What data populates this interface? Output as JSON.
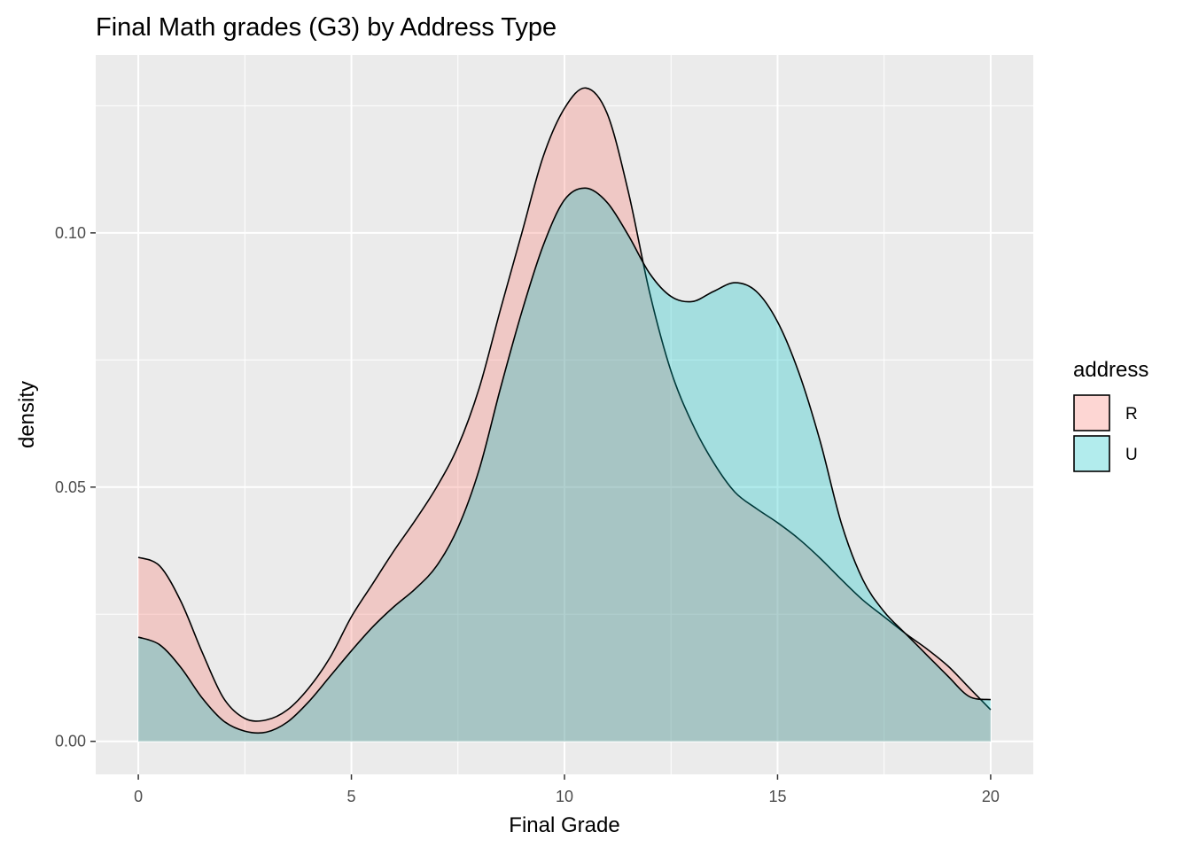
{
  "chart_data": {
    "type": "area",
    "subtype": "density",
    "title": "Final Math grades (G3) by Address Type",
    "xlabel": "Final Grade",
    "ylabel": "density",
    "xlim": [
      -1,
      21
    ],
    "ylim": [
      -0.0065,
      0.135
    ],
    "x_ticks": [
      0,
      5,
      10,
      15,
      20
    ],
    "x_tick_labels": [
      "0",
      "5",
      "10",
      "15",
      "20"
    ],
    "y_ticks": [
      0,
      0.05,
      0.1
    ],
    "y_tick_labels": [
      "0.00",
      "0.05",
      "0.10"
    ],
    "x_minor_ticks": [
      2.5,
      7.5,
      12.5,
      17.5
    ],
    "y_minor_ticks": [
      0.025,
      0.075,
      0.125
    ],
    "grid": true,
    "legend": {
      "title": "address",
      "position": "right"
    },
    "panel_background": "#ebebeb",
    "outline_color": "#000000",
    "fill_alpha": 0.3,
    "series": [
      {
        "name": "R",
        "color": "#f8766d",
        "x": [
          0,
          0.5,
          1,
          1.5,
          2,
          2.5,
          3,
          3.5,
          4,
          4.5,
          5,
          5.5,
          6,
          6.5,
          7,
          7.5,
          8,
          8.5,
          9,
          9.5,
          10,
          10.5,
          11,
          11.5,
          12,
          12.5,
          13,
          13.5,
          14,
          14.5,
          15,
          15.5,
          16,
          16.5,
          17,
          17.5,
          18,
          18.5,
          19,
          19.5,
          20
        ],
        "values": [
          0.0362,
          0.0345,
          0.0275,
          0.0175,
          0.0085,
          0.0045,
          0.0042,
          0.0062,
          0.0105,
          0.0165,
          0.0245,
          0.031,
          0.0375,
          0.0435,
          0.05,
          0.058,
          0.0695,
          0.085,
          0.1,
          0.115,
          0.1245,
          0.1285,
          0.1235,
          0.108,
          0.0882,
          0.0728,
          0.0625,
          0.0548,
          0.049,
          0.0458,
          0.043,
          0.0398,
          0.036,
          0.0318,
          0.0278,
          0.0245,
          0.0212,
          0.0182,
          0.0148,
          0.0105,
          0.0062
        ]
      },
      {
        "name": "U",
        "color": "#00bfc4",
        "x": [
          0,
          0.5,
          1,
          1.5,
          2,
          2.5,
          3,
          3.5,
          4,
          4.5,
          5,
          5.5,
          6,
          6.5,
          7,
          7.5,
          8,
          8.5,
          9,
          9.5,
          10,
          10.5,
          11,
          11.5,
          12,
          12.5,
          13,
          13.5,
          14,
          14.5,
          15,
          15.5,
          16,
          16.5,
          17,
          17.5,
          18,
          18.5,
          19,
          19.5,
          20
        ],
        "values": [
          0.0205,
          0.019,
          0.0145,
          0.0085,
          0.004,
          0.002,
          0.0018,
          0.0038,
          0.0078,
          0.0128,
          0.0178,
          0.0225,
          0.0265,
          0.03,
          0.0345,
          0.042,
          0.0535,
          0.0695,
          0.0845,
          0.0975,
          0.1065,
          0.1088,
          0.106,
          0.0995,
          0.092,
          0.0875,
          0.0865,
          0.0885,
          0.0902,
          0.0885,
          0.0825,
          0.0725,
          0.059,
          0.0428,
          0.0318,
          0.0255,
          0.0212,
          0.017,
          0.0128,
          0.0088,
          0.0082
        ]
      }
    ]
  }
}
